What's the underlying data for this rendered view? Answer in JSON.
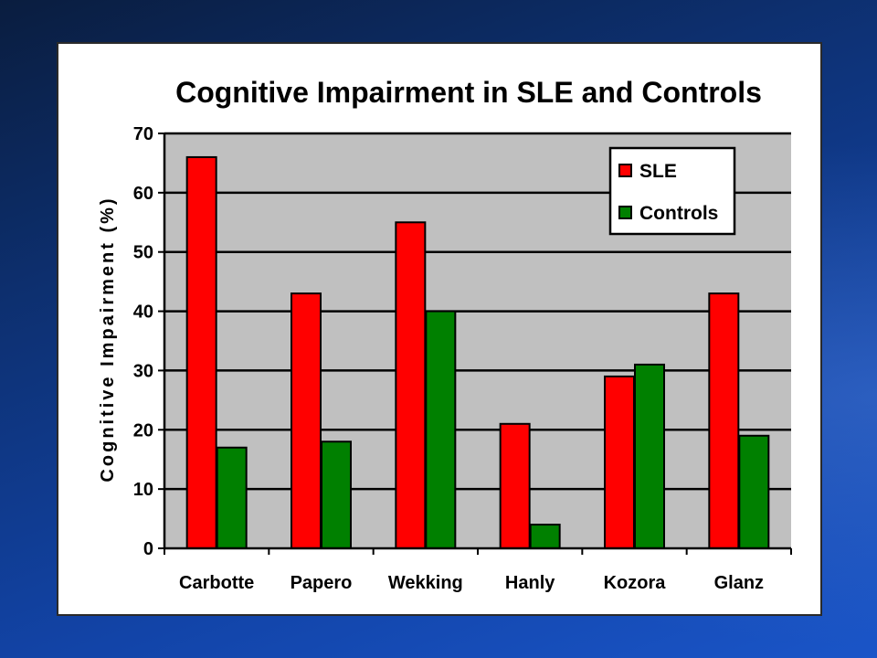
{
  "chart_data": {
    "type": "bar",
    "title": "Cognitive Impairment in SLE and Controls",
    "xlabel": "",
    "ylabel": "Cognitive Impairment (%)",
    "categories": [
      "Carbotte",
      "Papero",
      "Wekking",
      "Hanly",
      "Kozora",
      "Glanz"
    ],
    "series": [
      {
        "name": "SLE",
        "color": "#ff0000",
        "values": [
          66,
          43,
          55,
          21,
          29,
          43
        ]
      },
      {
        "name": "Controls",
        "color": "#008000",
        "values": [
          17,
          18,
          40,
          4,
          31,
          19
        ]
      }
    ],
    "ylim": [
      0,
      70
    ],
    "yticks": [
      0,
      10,
      20,
      30,
      40,
      50,
      60,
      70
    ],
    "grid": true,
    "legend": "top-right",
    "plot_background": "#c0c0c0"
  }
}
